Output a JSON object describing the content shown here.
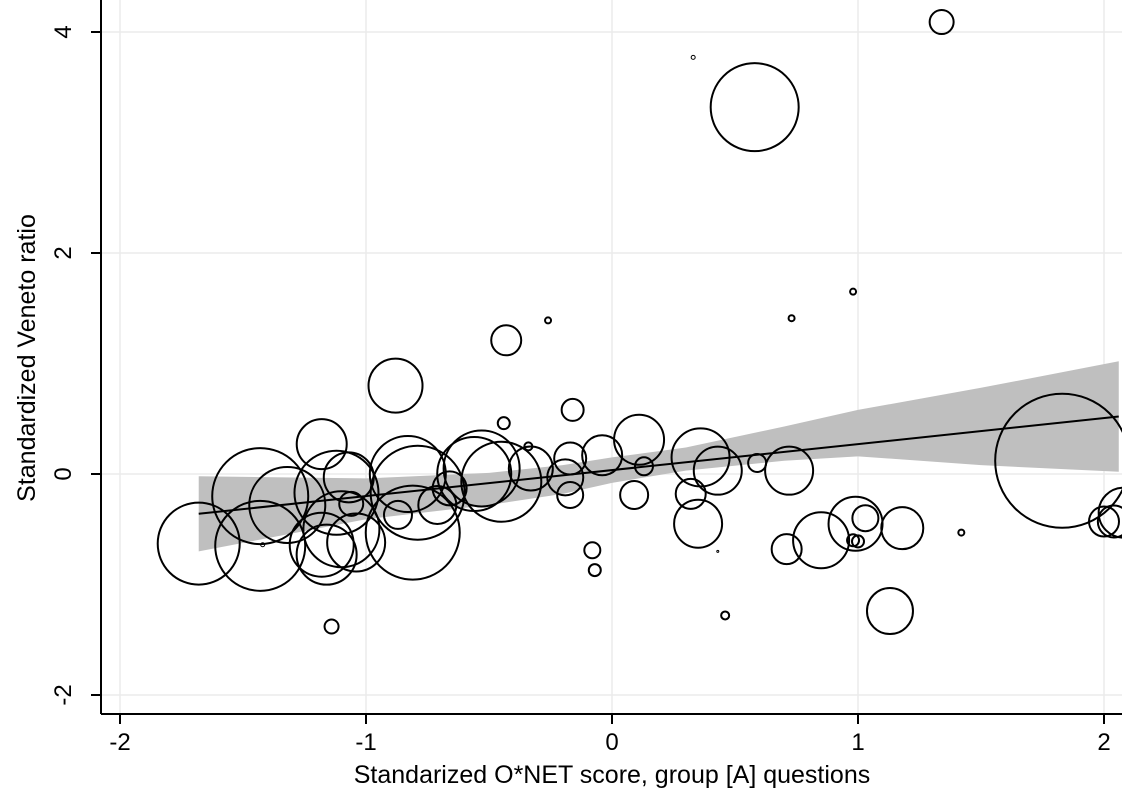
{
  "chart_data": {
    "type": "scatter",
    "title": "",
    "xlabel": "Standarized O*NET score, group [A] questions",
    "ylabel": "Standardized Veneto ratio",
    "xlim": [
      -2.07,
      2.06
    ],
    "ylim": [
      -2.15,
      4.25
    ],
    "xticks": [
      -2,
      -1,
      0,
      1,
      2
    ],
    "yticks": [
      -2,
      0,
      2,
      4
    ],
    "xtick_labels": [
      "-2",
      "-1",
      "0",
      "1",
      "2"
    ],
    "ytick_labels": [
      "-2",
      "0",
      "2",
      "4"
    ],
    "grid": true,
    "legend": "none",
    "marker": "hollow circle, size proportional to weight",
    "colors": {
      "markers": "#000000",
      "fit_line": "#000000",
      "ci_band": "#bfbfbf",
      "grid": "#ebebeb"
    },
    "points": [
      {
        "x": -1.68,
        "y": -0.63,
        "size": 41
      },
      {
        "x": -1.43,
        "y": -0.65,
        "size": 45
      },
      {
        "x": -1.43,
        "y": -0.2,
        "size": 48
      },
      {
        "x": -1.42,
        "y": -0.64,
        "size": 2
      },
      {
        "x": -1.32,
        "y": -0.28,
        "size": 38
      },
      {
        "x": -1.18,
        "y": 0.27,
        "size": 25
      },
      {
        "x": -1.18,
        "y": -0.64,
        "size": 32
      },
      {
        "x": -1.16,
        "y": -0.73,
        "size": 30
      },
      {
        "x": -1.14,
        "y": -1.38,
        "size": 7
      },
      {
        "x": -1.12,
        "y": -0.17,
        "size": 42
      },
      {
        "x": -1.1,
        "y": -0.5,
        "size": 38
      },
      {
        "x": -1.07,
        "y": -0.03,
        "size": 25
      },
      {
        "x": -1.06,
        "y": -0.27,
        "size": 12
      },
      {
        "x": -1.04,
        "y": -0.62,
        "size": 29
      },
      {
        "x": -0.88,
        "y": 0.8,
        "size": 27
      },
      {
        "x": -0.87,
        "y": -0.37,
        "size": 14
      },
      {
        "x": -0.83,
        "y": 0.0,
        "size": 38
      },
      {
        "x": -0.81,
        "y": -0.53,
        "size": 47
      },
      {
        "x": -0.79,
        "y": -0.17,
        "size": 47
      },
      {
        "x": -0.71,
        "y": -0.28,
        "size": 19
      },
      {
        "x": -0.66,
        "y": -0.13,
        "size": 17
      },
      {
        "x": -0.56,
        "y": 0.0,
        "size": 37
      },
      {
        "x": -0.53,
        "y": 0.05,
        "size": 38
      },
      {
        "x": -0.45,
        "y": -0.07,
        "size": 40
      },
      {
        "x": -0.44,
        "y": 0.46,
        "size": 6
      },
      {
        "x": -0.43,
        "y": 1.21,
        "size": 15
      },
      {
        "x": -0.34,
        "y": 0.25,
        "size": 4
      },
      {
        "x": -0.33,
        "y": 0.05,
        "size": 22
      },
      {
        "x": -0.26,
        "y": 1.39,
        "size": 3
      },
      {
        "x": -0.19,
        "y": -0.03,
        "size": 18
      },
      {
        "x": -0.17,
        "y": 0.14,
        "size": 16
      },
      {
        "x": -0.17,
        "y": -0.19,
        "size": 13
      },
      {
        "x": -0.16,
        "y": 0.58,
        "size": 11
      },
      {
        "x": -0.08,
        "y": -0.69,
        "size": 8
      },
      {
        "x": -0.07,
        "y": -0.87,
        "size": 6
      },
      {
        "x": -0.04,
        "y": 0.17,
        "size": 20
      },
      {
        "x": 0.09,
        "y": -0.19,
        "size": 14
      },
      {
        "x": 0.11,
        "y": 0.31,
        "size": 25
      },
      {
        "x": 0.13,
        "y": 0.07,
        "size": 9
      },
      {
        "x": 0.32,
        "y": -0.18,
        "size": 15
      },
      {
        "x": 0.33,
        "y": 3.77,
        "size": 2
      },
      {
        "x": 0.35,
        "y": -0.45,
        "size": 24
      },
      {
        "x": 0.36,
        "y": 0.15,
        "size": 29
      },
      {
        "x": 0.43,
        "y": -0.7,
        "size": 1
      },
      {
        "x": 0.43,
        "y": 0.03,
        "size": 24
      },
      {
        "x": 0.46,
        "y": -1.28,
        "size": 4
      },
      {
        "x": 0.58,
        "y": 3.32,
        "size": 44
      },
      {
        "x": 0.59,
        "y": 0.1,
        "size": 9
      },
      {
        "x": 0.71,
        "y": -0.68,
        "size": 15
      },
      {
        "x": 0.72,
        "y": 0.03,
        "size": 24
      },
      {
        "x": 0.73,
        "y": 1.41,
        "size": 3
      },
      {
        "x": 0.85,
        "y": -0.6,
        "size": 28
      },
      {
        "x": 0.98,
        "y": 1.65,
        "size": 3
      },
      {
        "x": 0.98,
        "y": -0.6,
        "size": 6
      },
      {
        "x": 0.99,
        "y": -0.45,
        "size": 27
      },
      {
        "x": 1.0,
        "y": -0.61,
        "size": 6
      },
      {
        "x": 1.03,
        "y": -0.4,
        "size": 13
      },
      {
        "x": 1.13,
        "y": -1.24,
        "size": 23
      },
      {
        "x": 1.18,
        "y": -0.49,
        "size": 21
      },
      {
        "x": 1.34,
        "y": 4.09,
        "size": 12
      },
      {
        "x": 1.42,
        "y": -0.53,
        "size": 3
      },
      {
        "x": 1.83,
        "y": 0.12,
        "size": 67
      },
      {
        "x": 2.0,
        "y": -0.43,
        "size": 15
      },
      {
        "x": 2.04,
        "y": -0.43,
        "size": 16
      },
      {
        "x": 2.08,
        "y": -0.35,
        "size": 25
      }
    ],
    "fit_line": {
      "x": [
        -1.68,
        2.06
      ],
      "y": [
        -0.36,
        0.52
      ]
    },
    "ci_band": {
      "x": [
        -1.68,
        -1.0,
        -0.5,
        -0.2,
        0.0,
        0.3,
        0.7,
        1.0,
        1.5,
        2.06
      ],
      "lower": [
        -0.7,
        -0.41,
        -0.28,
        -0.18,
        -0.08,
        0.03,
        0.12,
        0.16,
        0.08,
        0.02
      ],
      "upper": [
        -0.02,
        -0.04,
        0.01,
        0.08,
        0.15,
        0.24,
        0.43,
        0.58,
        0.78,
        1.02
      ]
    }
  }
}
